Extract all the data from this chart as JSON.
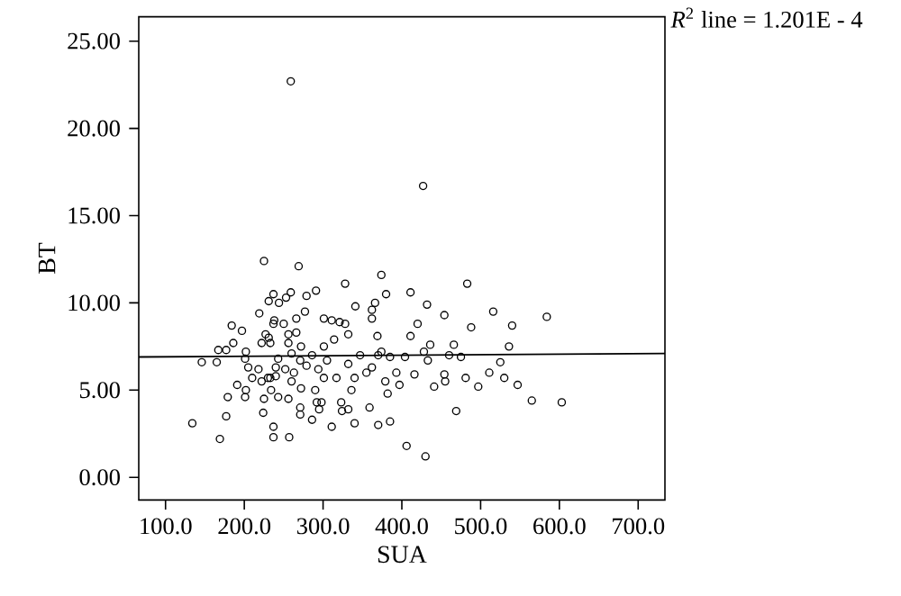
{
  "chart_data": {
    "type": "scatter",
    "xlabel": "SUA",
    "ylabel": "BT",
    "annotations": [
      "*R*$^{2}$ line = 1.201E - 4"
    ],
    "xlim": [
      66,
      734
    ],
    "ylim": [
      -1.3,
      26.4
    ],
    "xticks": [
      {
        "value": 100,
        "label": "100.0"
      },
      {
        "value": 200,
        "label": "200.0"
      },
      {
        "value": 300,
        "label": "300.0"
      },
      {
        "value": 400,
        "label": "400.0"
      },
      {
        "value": 500,
        "label": "500.0"
      },
      {
        "value": 600,
        "label": "600.0"
      },
      {
        "value": 700,
        "label": "700.0"
      }
    ],
    "yticks": [
      {
        "value": 0,
        "label": "0.00"
      },
      {
        "value": 5,
        "label": "5.00"
      },
      {
        "value": 10,
        "label": "10.00"
      },
      {
        "value": 15,
        "label": "15.00"
      },
      {
        "value": 20,
        "label": "20.00"
      },
      {
        "value": 25,
        "label": "25.00"
      }
    ],
    "grid": false,
    "series": [
      {
        "marker": "circle",
        "color": "#000000",
        "x": [
          259,
          427,
          225,
          269,
          374,
          328,
          291,
          259,
          279,
          219,
          238,
          250,
          266,
          277,
          184,
          197,
          186,
          167,
          177,
          202,
          201,
          146,
          165,
          205,
          227,
          231,
          243,
          260,
          272,
          286,
          301,
          314,
          332,
          341,
          362,
          366,
          380,
          369,
          385,
          370,
          355,
          340,
          317,
          301,
          290,
          292,
          295,
          279,
          263,
          252,
          240,
          230,
          222,
          210,
          202,
          201,
          179,
          191,
          177,
          134,
          169,
          225,
          243,
          256,
          224,
          237,
          237,
          257,
          286,
          298,
          311,
          324,
          340,
          359,
          370,
          382,
          385,
          379,
          362,
          336,
          332,
          323,
          271,
          271,
          260,
          272,
          305,
          294,
          256,
          256,
          266,
          233,
          231,
          237,
          244,
          253,
          237,
          218,
          233,
          234,
          301,
          311,
          321,
          328,
          222,
          240,
          271,
          332,
          347,
          374,
          411,
          483,
          432,
          454,
          516,
          584,
          488,
          540,
          420,
          411,
          436,
          536,
          466,
          460,
          475,
          525,
          428,
          404,
          433,
          416,
          454,
          455,
          441,
          481,
          497,
          511,
          530,
          547,
          397,
          469,
          565,
          603,
          406,
          430,
          393,
          362
        ],
        "values": [
          22.7,
          16.7,
          12.4,
          12.1,
          11.6,
          11.1,
          10.7,
          10.6,
          10.4,
          9.4,
          9.0,
          8.8,
          9.1,
          9.5,
          8.7,
          8.4,
          7.7,
          7.3,
          7.3,
          7.2,
          6.8,
          6.6,
          6.6,
          6.3,
          8.2,
          8.0,
          6.8,
          7.1,
          7.5,
          7.0,
          7.5,
          7.9,
          8.2,
          9.8,
          9.1,
          10.0,
          10.5,
          8.1,
          6.9,
          7.0,
          6.0,
          5.7,
          5.7,
          5.7,
          5.0,
          4.3,
          3.9,
          6.4,
          6.0,
          6.2,
          5.8,
          5.7,
          5.5,
          5.7,
          5.0,
          4.6,
          4.6,
          5.3,
          3.5,
          3.1,
          2.2,
          4.5,
          4.6,
          4.5,
          3.7,
          2.9,
          2.3,
          2.3,
          3.3,
          4.3,
          2.9,
          3.8,
          3.1,
          4.0,
          3.0,
          4.8,
          3.2,
          5.5,
          6.3,
          5.0,
          3.9,
          4.3,
          3.6,
          4.0,
          5.5,
          5.1,
          6.7,
          6.2,
          7.7,
          8.2,
          8.3,
          7.7,
          10.1,
          10.5,
          10.0,
          10.3,
          8.8,
          6.2,
          5.7,
          5.0,
          9.1,
          9.0,
          8.9,
          8.8,
          7.7,
          6.3,
          6.7,
          6.5,
          7.0,
          7.2,
          10.6,
          11.1,
          9.9,
          9.3,
          9.5,
          9.2,
          8.6,
          8.7,
          8.8,
          8.1,
          7.6,
          7.5,
          7.6,
          7.0,
          6.9,
          6.6,
          7.2,
          6.9,
          6.7,
          5.9,
          5.9,
          5.5,
          5.2,
          5.7,
          5.2,
          6.0,
          5.7,
          5.3,
          5.3,
          3.8,
          4.4,
          4.3,
          1.8,
          1.2,
          6.0,
          9.6
        ]
      },
      {
        "type": "line",
        "marker": "none",
        "color": "#000000",
        "x": [
          66,
          734
        ],
        "values": [
          6.9,
          7.1
        ]
      }
    ]
  }
}
